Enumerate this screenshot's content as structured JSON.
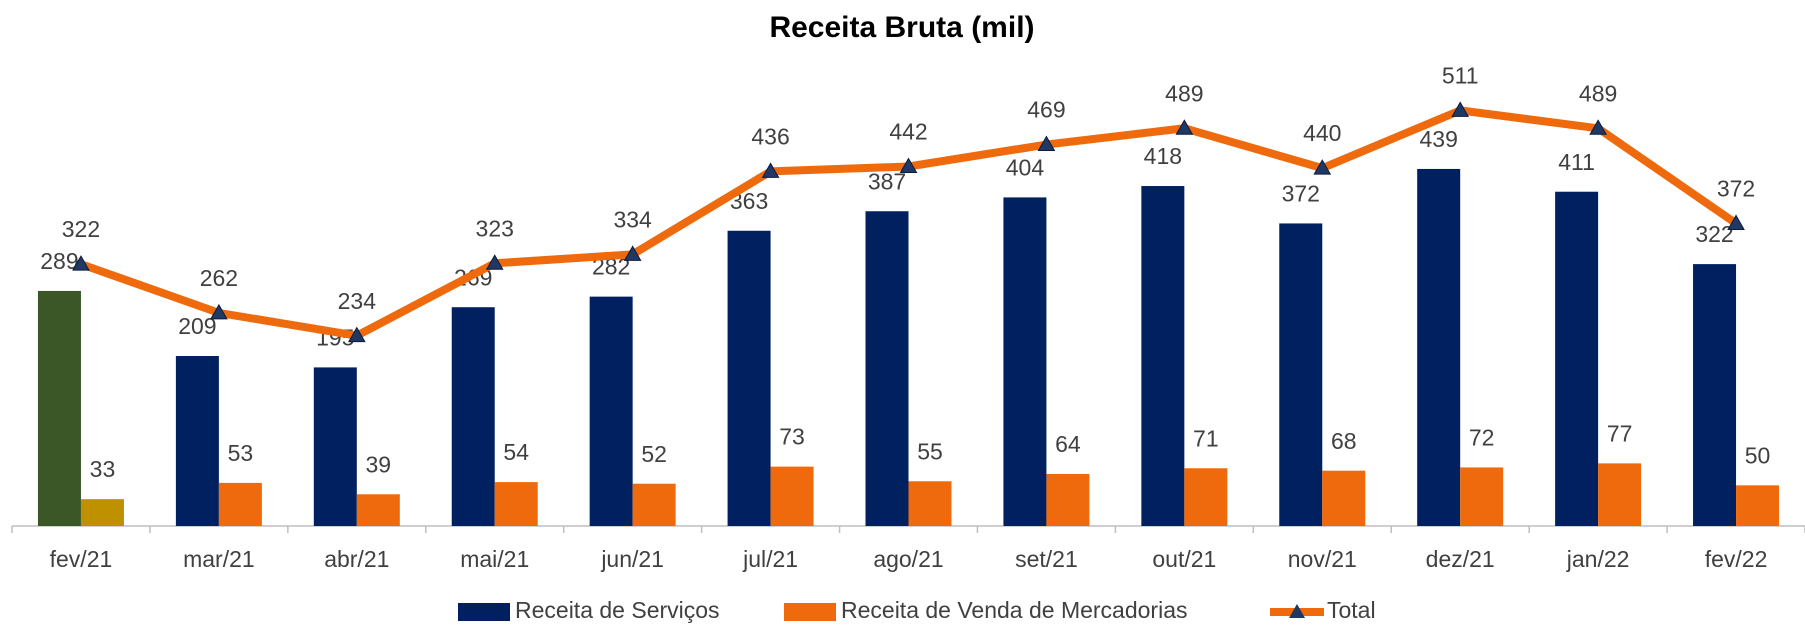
{
  "chart_data": {
    "type": "bar-line",
    "title": "Receita Bruta (mil)",
    "categories": [
      "fev/21",
      "mar/21",
      "abr/21",
      "mai/21",
      "jun/21",
      "jul/21",
      "ago/21",
      "set/21",
      "out/21",
      "nov/21",
      "dez/21",
      "jan/22",
      "fev/22"
    ],
    "series": [
      {
        "name": "Receita de Serviços",
        "type": "bar",
        "color": "#002060",
        "colors": [
          "#3b5727",
          "#002060",
          "#002060",
          "#002060",
          "#002060",
          "#002060",
          "#002060",
          "#002060",
          "#002060",
          "#002060",
          "#002060",
          "#002060",
          "#002060"
        ],
        "values": [
          289,
          209,
          195,
          269,
          282,
          363,
          387,
          404,
          418,
          372,
          439,
          411,
          322
        ]
      },
      {
        "name": "Receita de Venda de Mercadorias",
        "type": "bar",
        "color": "#ef6a0c",
        "colors": [
          "#bf9000",
          "#ef6a0c",
          "#ef6a0c",
          "#ef6a0c",
          "#ef6a0c",
          "#ef6a0c",
          "#ef6a0c",
          "#ef6a0c",
          "#ef6a0c",
          "#ef6a0c",
          "#ef6a0c",
          "#ef6a0c",
          "#ef6a0c"
        ],
        "values": [
          33,
          53,
          39,
          54,
          52,
          73,
          55,
          64,
          71,
          68,
          72,
          77,
          50
        ]
      },
      {
        "name": "Total",
        "type": "line",
        "color": "#ef6a0c",
        "marker_color": "#1f3864",
        "values": [
          322,
          262,
          234,
          323,
          334,
          436,
          442,
          469,
          489,
          440,
          511,
          489,
          372
        ]
      }
    ],
    "ylim": [
      0,
      600
    ]
  }
}
